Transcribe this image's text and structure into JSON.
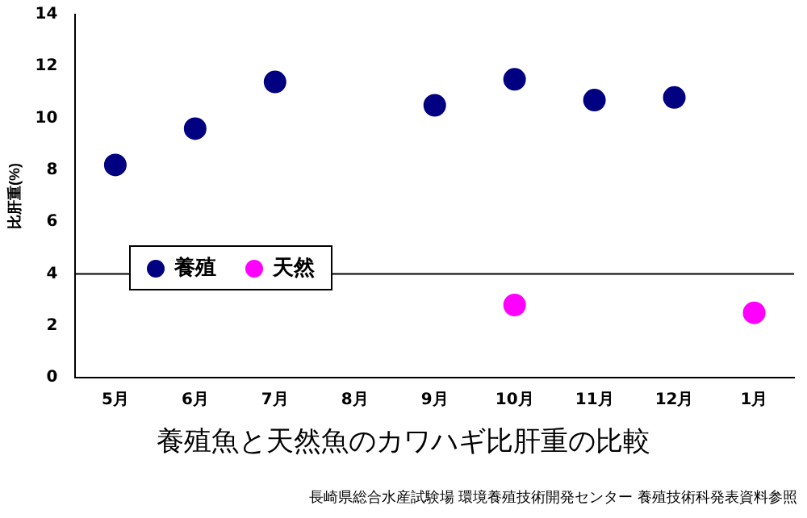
{
  "chart_data": {
    "type": "scatter",
    "title": "養殖魚と天然魚のカワハギ比肝重の比較",
    "ylabel": "比肝重(%)",
    "categories": [
      "5月",
      "6月",
      "7月",
      "8月",
      "9月",
      "10月",
      "11月",
      "12月",
      "1月"
    ],
    "series": [
      {
        "name": "養殖",
        "color": "#000080",
        "values": [
          8.2,
          9.6,
          11.4,
          null,
          10.5,
          11.5,
          10.7,
          10.8,
          null
        ]
      },
      {
        "name": "天然",
        "color": "#ff00ff",
        "values": [
          null,
          null,
          null,
          null,
          null,
          2.8,
          null,
          null,
          2.5
        ]
      }
    ],
    "ylim": [
      0,
      14
    ],
    "yticks": [
      0,
      2,
      4,
      6,
      8,
      10,
      12,
      14
    ],
    "grid": false,
    "legend": "left",
    "marker": "circle",
    "ref_lines": [
      {
        "axis": "y",
        "value": 4,
        "color": "#000000"
      }
    ],
    "annotations": [
      "長崎県総合水産試験場 環境養殖技術開発センター 養殖技術科発表資料参照"
    ]
  }
}
